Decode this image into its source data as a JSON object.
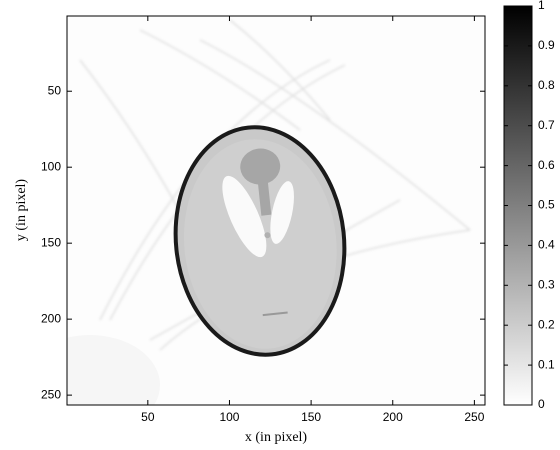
{
  "chart_data": {
    "type": "image",
    "xlabel": "x (in pixel)",
    "ylabel": "y (in pixel)",
    "xlim": [
      0.5,
      256.5
    ],
    "xticks": [
      50,
      100,
      150,
      200,
      250
    ],
    "ylim": [
      0.5,
      256.5
    ],
    "yticks": [
      50,
      100,
      150,
      200,
      250
    ],
    "y_direction": "reverse",
    "colormap": [
      "#ffffff",
      "#000000"
    ],
    "clim": [
      0,
      1
    ],
    "cticks": [
      0,
      0.1,
      0.2,
      0.3,
      0.4,
      0.5,
      0.6,
      0.7,
      0.8,
      0.9,
      1
    ]
  }
}
